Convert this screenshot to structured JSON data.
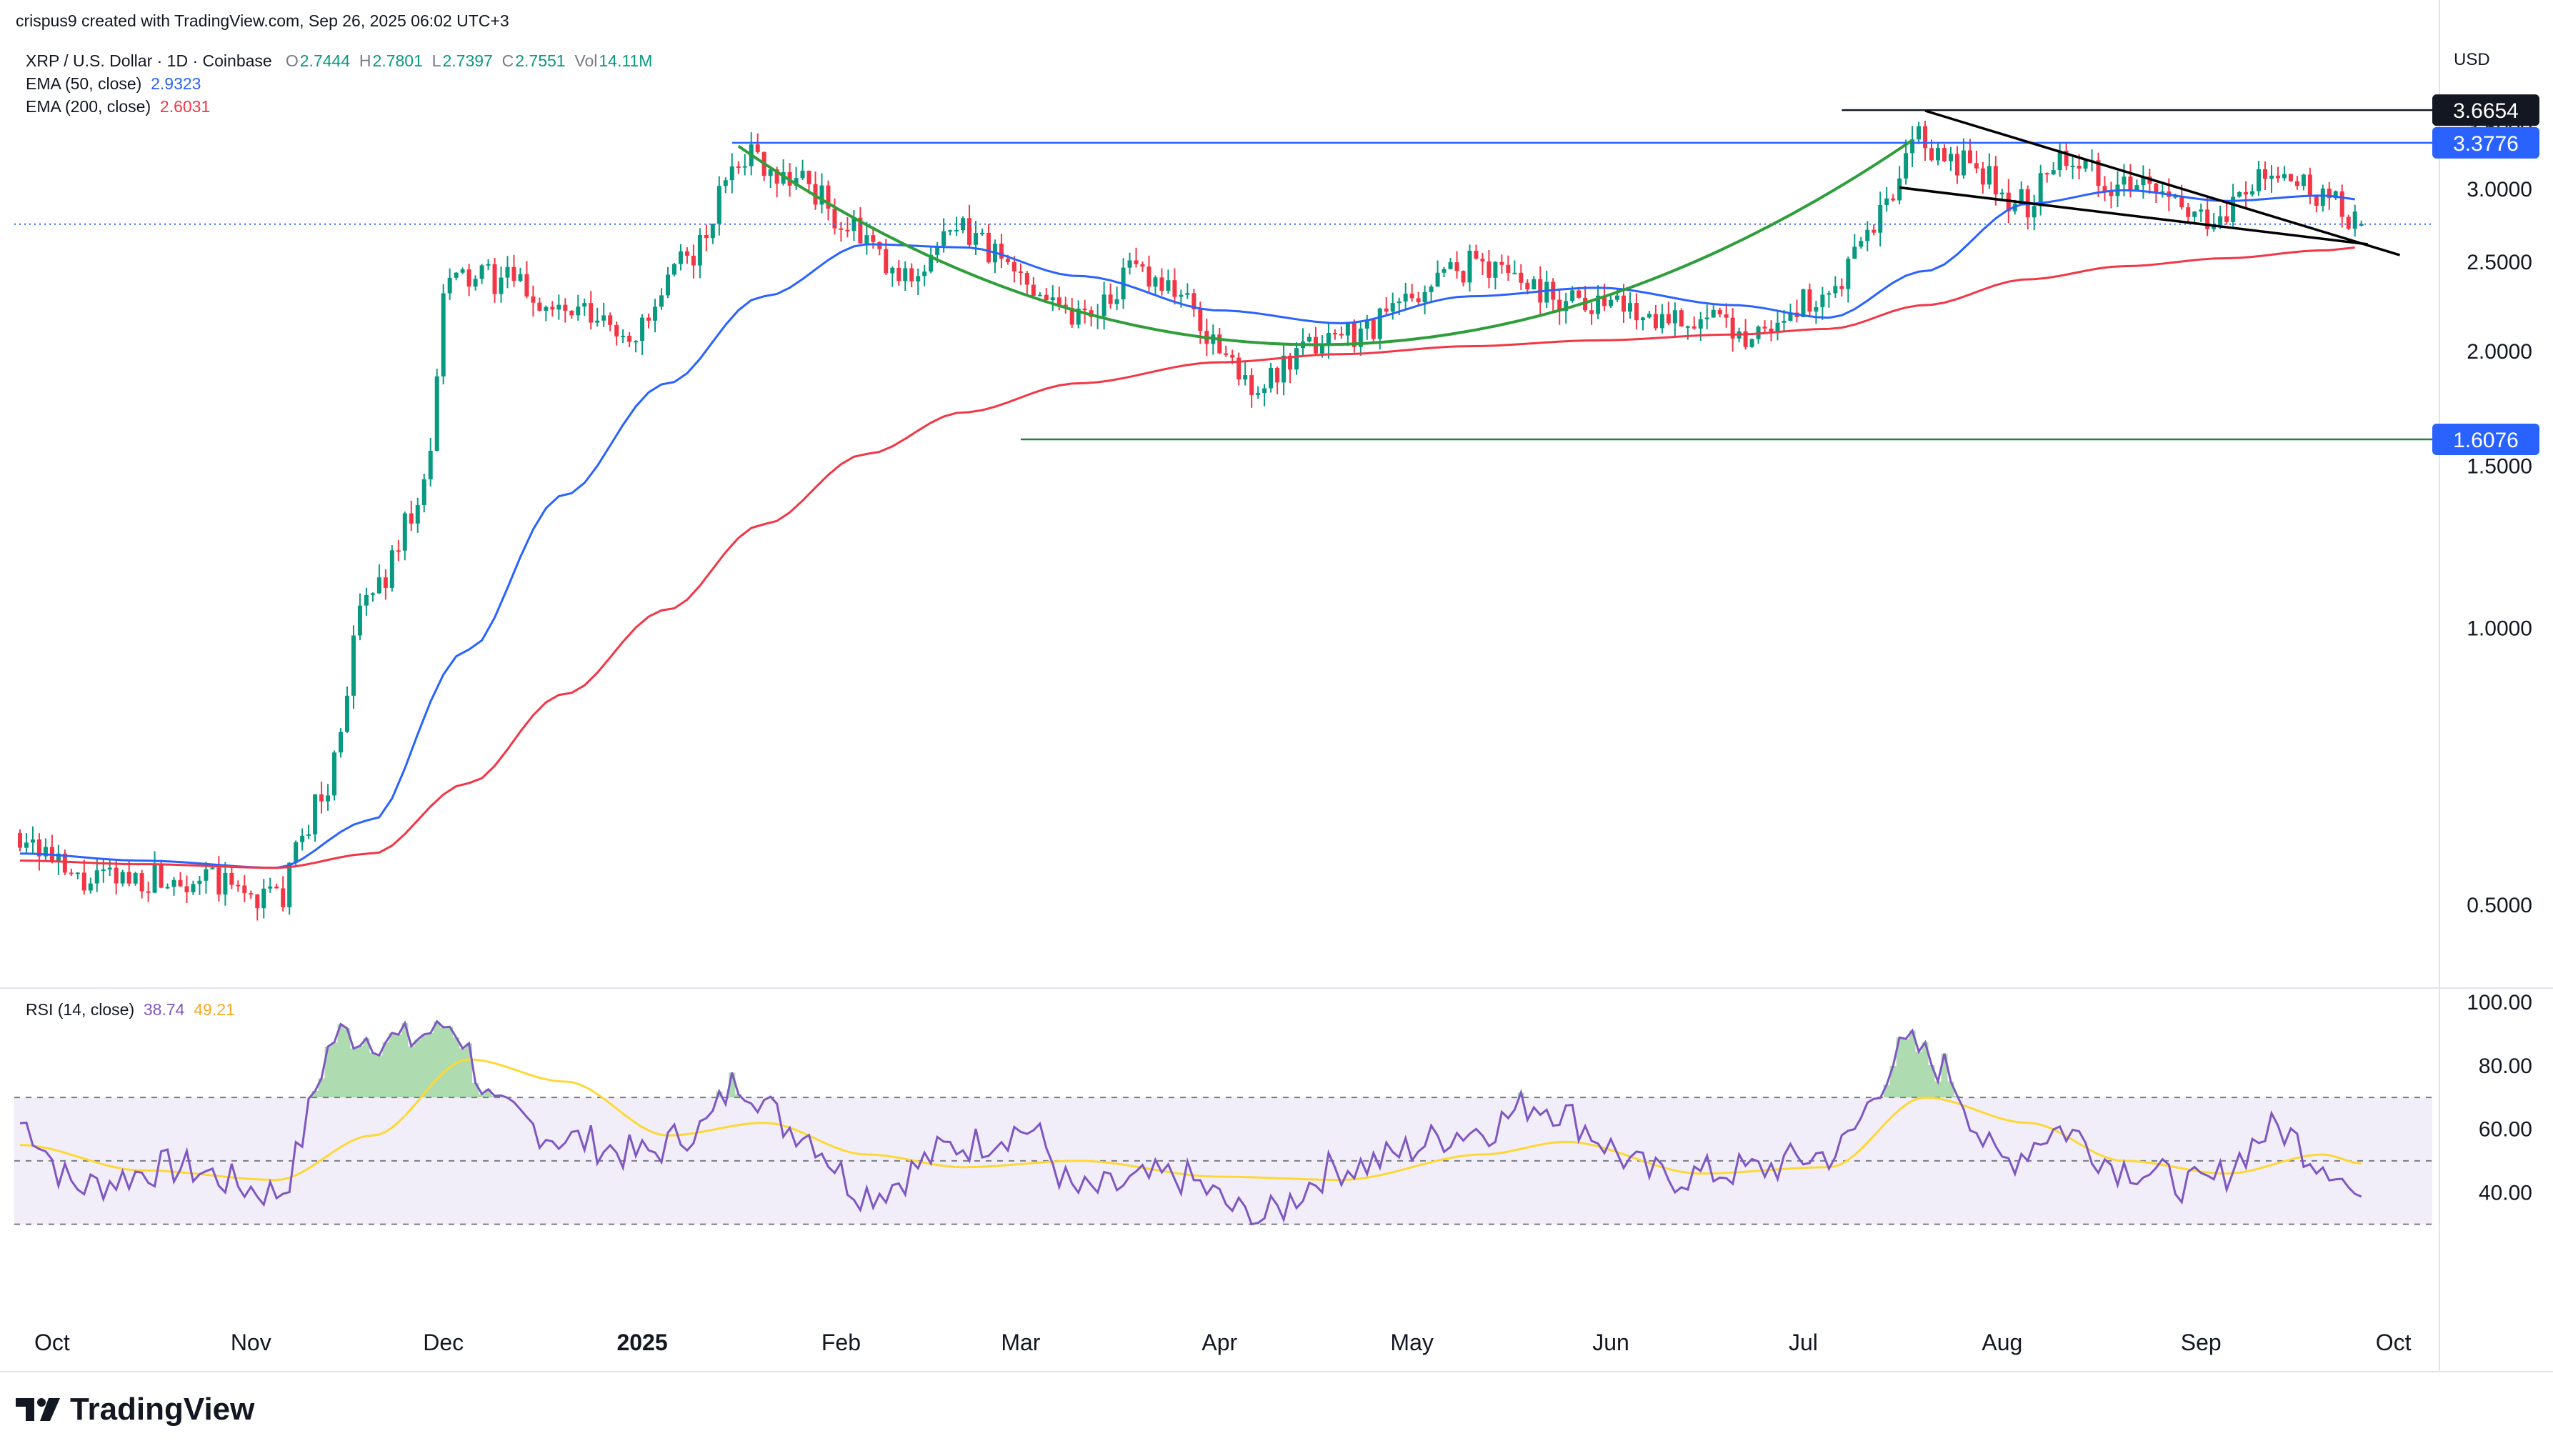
{
  "header": {
    "created_by": "crispus9 created with TradingView.com, Sep 26, 2025 06:02 UTC+3",
    "symbol": "XRP / U.S. Dollar · 1D · Coinbase",
    "ohlc": {
      "o_label": "O",
      "o_value": "2.7444",
      "h_label": "H",
      "h_value": "2.7801",
      "l_label": "L",
      "l_value": "2.7397",
      "c_label": "C",
      "c_value": "2.7551",
      "vol_label": "Vol",
      "vol_value": "14.11M"
    },
    "indicators": [
      {
        "label": "EMA (50, close)",
        "value": "2.9323",
        "color": "#2962ff"
      },
      {
        "label": "EMA (200, close)",
        "value": "2.6031",
        "color": "#f23645"
      }
    ],
    "rsi_label": "RSI (14, close)",
    "rsi_value": "38.74",
    "rsi_ma_value": "49.21",
    "currency": "USD"
  },
  "branding": {
    "name": "TradingView"
  },
  "colors": {
    "up": "#089981",
    "down": "#f23645",
    "ema50": "#2962ff",
    "ema200": "#f23645",
    "rsi": "#7e57c2",
    "rsi_ma": "#fdd835",
    "cup": "#2e9e3a",
    "hline_blue": "#2962ff",
    "hline_green": "#2e7d32",
    "wedge": "#000000"
  },
  "chart_data": [
    {
      "type": "line",
      "title": "XRP / U.S. Dollar · 1D · Coinbase",
      "y_scale": "log",
      "ylim": [
        0.4,
        3.9
      ],
      "y_ticks": [
        "0.5000",
        "1.0000",
        "1.5000",
        "2.0000",
        "2.5000",
        "3.0000",
        "3.5000"
      ],
      "x_ticks": [
        "Oct",
        "Nov",
        "Dec",
        "2025",
        "Feb",
        "Mar",
        "Apr",
        "May",
        "Jun",
        "Jul",
        "Aug",
        "Sep",
        "Oct"
      ],
      "price_labels": [
        {
          "value": "3.6654",
          "style": "black"
        },
        {
          "value": "3.3776",
          "style": "blue"
        },
        {
          "value": "1.6076",
          "style": "blue"
        }
      ],
      "series": [
        {
          "name": "EMA (50, close)",
          "x": [
            "2024-09-26",
            "2024-10-15",
            "2024-11-05",
            "2024-11-20",
            "2024-12-05",
            "2024-12-20",
            "2025-01-05",
            "2025-01-20",
            "2025-02-05",
            "2025-02-20",
            "2025-03-10",
            "2025-04-01",
            "2025-04-20",
            "2025-05-10",
            "2025-05-30",
            "2025-06-20",
            "2025-07-05",
            "2025-07-20",
            "2025-08-05",
            "2025-08-20",
            "2025-09-05",
            "2025-09-20",
            "2025-09-26"
          ],
          "values": [
            0.57,
            0.56,
            0.55,
            0.62,
            0.95,
            1.4,
            1.85,
            2.3,
            2.62,
            2.6,
            2.42,
            2.22,
            2.15,
            2.3,
            2.35,
            2.25,
            2.18,
            2.45,
            2.9,
            3.0,
            2.92,
            2.96,
            2.93
          ]
        },
        {
          "name": "EMA (200, close)",
          "x": [
            "2024-09-26",
            "2024-10-15",
            "2024-11-05",
            "2024-11-20",
            "2024-12-05",
            "2024-12-20",
            "2025-01-05",
            "2025-01-20",
            "2025-02-05",
            "2025-02-20",
            "2025-03-10",
            "2025-04-01",
            "2025-04-20",
            "2025-05-10",
            "2025-05-30",
            "2025-06-20",
            "2025-07-05",
            "2025-07-20",
            "2025-08-05",
            "2025-08-20",
            "2025-09-05",
            "2025-09-20",
            "2025-09-26"
          ],
          "values": [
            0.56,
            0.555,
            0.55,
            0.57,
            0.68,
            0.85,
            1.05,
            1.3,
            1.55,
            1.72,
            1.85,
            1.95,
            1.99,
            2.03,
            2.06,
            2.09,
            2.12,
            2.25,
            2.4,
            2.48,
            2.53,
            2.58,
            2.6
          ]
        }
      ],
      "close_approx": {
        "x": [
          "2024-09-26",
          "2024-10-05",
          "2024-10-20",
          "2024-11-05",
          "2024-11-12",
          "2024-11-20",
          "2024-11-28",
          "2024-12-02",
          "2024-12-10",
          "2024-12-20",
          "2024-12-31",
          "2025-01-10",
          "2025-01-16",
          "2025-01-25",
          "2025-02-03",
          "2025-02-10",
          "2025-02-20",
          "2025-03-02",
          "2025-03-10",
          "2025-03-20",
          "2025-04-07",
          "2025-04-20",
          "2025-05-12",
          "2025-05-25",
          "2025-06-10",
          "2025-06-22",
          "2025-07-05",
          "2025-07-15",
          "2025-07-18",
          "2025-07-25",
          "2025-08-05",
          "2025-08-10",
          "2025-08-20",
          "2025-09-01",
          "2025-09-13",
          "2025-09-20",
          "2025-09-26"
        ],
        "values": [
          0.6,
          0.53,
          0.54,
          0.51,
          0.65,
          1.1,
          1.4,
          2.4,
          2.4,
          2.2,
          2.1,
          2.6,
          3.3,
          3.1,
          2.7,
          2.4,
          2.7,
          2.4,
          2.2,
          2.45,
          1.85,
          2.1,
          2.5,
          2.3,
          2.2,
          2.1,
          2.3,
          2.9,
          3.4,
          3.2,
          2.9,
          3.3,
          3.05,
          2.8,
          3.1,
          2.95,
          2.7551
        ]
      }
    },
    {
      "type": "line",
      "title": "RSI (14, close)",
      "ylim": [
        25,
        100
      ],
      "y_ticks": [
        "40.00",
        "60.00",
        "80.00",
        "100.00"
      ],
      "bands": [
        30,
        50,
        70
      ],
      "series": [
        {
          "name": "RSI",
          "x": [
            "2024-09-26",
            "2024-10-05",
            "2024-10-20",
            "2024-11-05",
            "2024-11-15",
            "2024-11-25",
            "2024-12-02",
            "2024-12-10",
            "2024-12-20",
            "2025-01-01",
            "2025-01-10",
            "2025-01-16",
            "2025-01-25",
            "2025-02-05",
            "2025-02-20",
            "2025-03-02",
            "2025-03-10",
            "2025-03-25",
            "2025-04-07",
            "2025-04-20",
            "2025-05-12",
            "2025-05-20",
            "2025-06-10",
            "2025-06-22",
            "2025-07-05",
            "2025-07-18",
            "2025-07-22",
            "2025-08-01",
            "2025-08-10",
            "2025-08-20",
            "2025-09-01",
            "2025-09-13",
            "2025-09-20",
            "2025-09-26"
          ],
          "values": [
            62,
            42,
            48,
            40,
            90,
            88,
            93,
            65,
            57,
            52,
            60,
            75,
            60,
            40,
            55,
            60,
            40,
            45,
            32,
            48,
            60,
            68,
            45,
            47,
            52,
            86,
            80,
            50,
            60,
            48,
            42,
            60,
            50,
            38.74
          ]
        },
        {
          "name": "RSI-based MA",
          "x": [
            "2024-09-26",
            "2024-10-15",
            "2024-11-05",
            "2024-11-20",
            "2024-12-05",
            "2024-12-20",
            "2025-01-05",
            "2025-01-20",
            "2025-02-05",
            "2025-02-20",
            "2025-03-10",
            "2025-04-01",
            "2025-04-20",
            "2025-05-12",
            "2025-05-25",
            "2025-06-15",
            "2025-07-05",
            "2025-07-20",
            "2025-08-05",
            "2025-08-20",
            "2025-09-05",
            "2025-09-20",
            "2025-09-26"
          ],
          "values": [
            55,
            47,
            44,
            58,
            82,
            75,
            58,
            62,
            52,
            48,
            50,
            45,
            44,
            52,
            56,
            46,
            48,
            70,
            62,
            50,
            46,
            52,
            49.21
          ]
        }
      ]
    }
  ]
}
